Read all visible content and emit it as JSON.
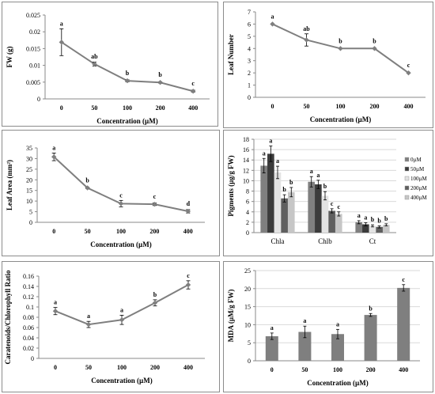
{
  "chart_data": [
    {
      "type": "line",
      "ylabel": "FW (g)",
      "xlabel": "Concentration (µM)",
      "categories": [
        "0",
        "50",
        "100",
        "200",
        "400"
      ],
      "ylim": [
        0,
        0.025
      ],
      "yticks": [
        "0",
        "0.005",
        "0.01",
        "0.015",
        "0.02",
        "0.025"
      ],
      "series": [
        {
          "values": [
            0.0169,
            0.0104,
            0.0054,
            0.0049,
            0.0023
          ],
          "errors": [
            0.004,
            0.0006,
            0.0003,
            0.0002,
            0.0003
          ]
        }
      ],
      "annotations": [
        "a",
        "ab",
        "b",
        "b",
        "c"
      ],
      "grid": false
    },
    {
      "type": "line",
      "ylabel": "Leaf Number",
      "xlabel": "Concentration (µM)",
      "categories": [
        "0",
        "50",
        "100",
        "200",
        "400"
      ],
      "ylim": [
        0,
        7
      ],
      "yticks": [
        "0",
        "1",
        "2",
        "3",
        "4",
        "5",
        "6",
        "7"
      ],
      "series": [
        {
          "values": [
            6,
            4.7,
            4,
            4,
            2
          ],
          "errors": [
            0,
            0.5,
            0,
            0,
            0
          ]
        }
      ],
      "annotations": [
        "a",
        "ab",
        "b",
        "b",
        "c"
      ],
      "grid": false
    },
    {
      "type": "line",
      "ylabel": "Leaf Area (mm²)",
      "xlabel": "Concentration (µM)",
      "categories": [
        "0",
        "50",
        "100",
        "200",
        "400"
      ],
      "ylim": [
        0,
        35
      ],
      "yticks": [
        "0",
        "5",
        "10",
        "15",
        "20",
        "25",
        "30",
        "35"
      ],
      "series": [
        {
          "values": [
            30.8,
            16.2,
            8.8,
            8.5,
            5.2
          ],
          "errors": [
            1.8,
            0.3,
            1.5,
            0.6,
            0.8
          ]
        }
      ],
      "annotations": [
        "a",
        "b",
        "c",
        "c",
        "d"
      ],
      "grid": false
    },
    {
      "type": "bar",
      "ylabel": "Pigments (µg/g FW)",
      "xlabel": "",
      "categories": [
        "Chla",
        "Chlb",
        "Ct"
      ],
      "ylim": [
        0,
        18
      ],
      "yticks": [
        "0",
        "2",
        "4",
        "6",
        "8",
        "10",
        "12",
        "14",
        "16",
        "18"
      ],
      "legend_position": "right",
      "series": [
        {
          "name": "0µM",
          "color": "#7f7f7f",
          "values": [
            12.9,
            9.8,
            2.0
          ],
          "errors": [
            1.4,
            1.0,
            0.3
          ],
          "letters": [
            "a",
            "a",
            "a"
          ]
        },
        {
          "name": "50µM",
          "color": "#3b3b3b",
          "values": [
            15.2,
            9.3,
            1.6
          ],
          "errors": [
            1.5,
            0.8,
            0.3
          ],
          "letters": [
            "a",
            "a",
            "a"
          ]
        },
        {
          "name": "100µM",
          "color": "#e3e3e3",
          "values": [
            11.6,
            7.1,
            1.3
          ],
          "errors": [
            1.2,
            0.8,
            0.2
          ],
          "letters": [
            "a",
            "b",
            "b"
          ]
        },
        {
          "name": "200µM",
          "color": "#5f5f5f",
          "values": [
            6.6,
            4.2,
            1.1
          ],
          "errors": [
            0.7,
            0.4,
            0.2
          ],
          "letters": [
            "b",
            "c",
            "b"
          ]
        },
        {
          "name": "400µM",
          "color": "#c6c6c6",
          "values": [
            7.8,
            3.6,
            1.5
          ],
          "errors": [
            0.9,
            0.4,
            0.2
          ],
          "letters": [
            "b",
            "c",
            "b"
          ]
        }
      ],
      "grid": true
    },
    {
      "type": "line",
      "ylabel": "Caratenoids/Chlorophyll Ratio",
      "xlabel": "Concentration (µM)",
      "categories": [
        "0",
        "50",
        "100",
        "200",
        "400"
      ],
      "ylim": [
        0,
        0.16
      ],
      "yticks": [
        "0",
        "0.02",
        "0.04",
        "0.06",
        "0.08",
        "0.1",
        "0.12",
        "0.14",
        "0.16"
      ],
      "series": [
        {
          "values": [
            0.092,
            0.066,
            0.075,
            0.108,
            0.143
          ],
          "errors": [
            0.007,
            0.006,
            0.009,
            0.006,
            0.008
          ]
        }
      ],
      "annotations": [
        "a",
        "a",
        "a",
        "b",
        "c"
      ],
      "grid": false
    },
    {
      "type": "bar",
      "ylabel": "MDA (µM/g FW)",
      "xlabel": "Concentration (µM)",
      "categories": [
        "0",
        "50",
        "100",
        "200",
        "400"
      ],
      "ylim": [
        0,
        25
      ],
      "yticks": [
        "0",
        "5",
        "10",
        "15",
        "20",
        "25"
      ],
      "series": [
        {
          "color": "#7f7f7f",
          "values": [
            6.8,
            8.0,
            7.4,
            12.7,
            20.2
          ],
          "errors": [
            0.9,
            1.6,
            1.3,
            0.4,
            0.9
          ]
        }
      ],
      "annotations": [
        "a",
        "a",
        "a",
        "b",
        "c"
      ],
      "grid": true
    }
  ]
}
